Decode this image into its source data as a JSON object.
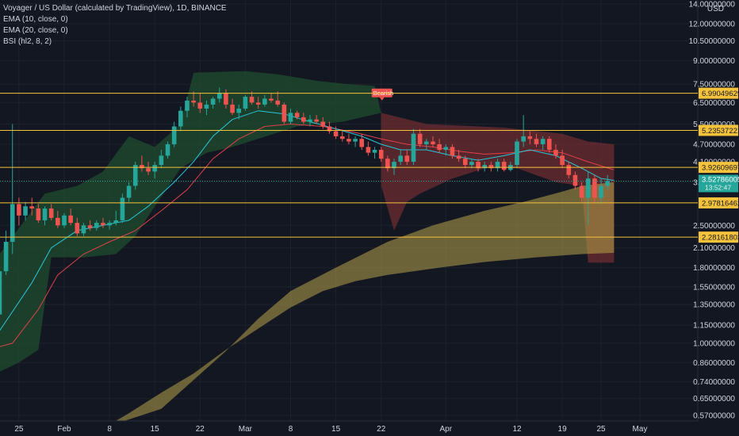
{
  "legend": {
    "title": "Voyager / US Dollar (calculated by TradingView), 1D, BINANCE",
    "ema1": "EMA (10, close, 0)",
    "ema2": "EMA (20, close, 0)",
    "bsi": "BSI (hl2, 8, 2)"
  },
  "colors": {
    "background": "#131722",
    "up": "#26a69a",
    "down": "#ef5350",
    "level_line": "#f5c33b",
    "green_zone": "#1f4a2e",
    "red_zone": "#7a2f33",
    "yellow_band": "#b8a24a",
    "ema10": "#26c6da",
    "ema20": "#e0404a"
  },
  "chart_data": {
    "type": "candlestick",
    "yscale": "log",
    "currency": "USD",
    "y_ticks": [
      "14.00000000",
      "12.00000000",
      "10.50000000",
      "9.00000000",
      "7.50000000",
      "6.50000000",
      "5.50000000",
      "4.70000000",
      "4.10000000",
      "3.50000000",
      "2.50000000",
      "2.10000000",
      "1.80000000",
      "1.55000000",
      "1.35000000",
      "1.15000000",
      "1.00000000",
      "0.86000000",
      "0.74000000",
      "0.65000000",
      "0.57000000"
    ],
    "y_tick_values": [
      14.0,
      12.0,
      10.5,
      9.0,
      7.5,
      6.5,
      5.5,
      4.7,
      4.1,
      3.5,
      2.5,
      2.1,
      1.8,
      1.55,
      1.35,
      1.15,
      1.0,
      0.86,
      0.74,
      0.65,
      0.57
    ],
    "x_ticks": [
      "25",
      "Feb",
      "8",
      "15",
      "22",
      "Mar",
      "8",
      "15",
      "22",
      "Apr",
      "12",
      "19",
      "25",
      "May"
    ],
    "x_tick_days": [
      -7,
      0,
      7,
      14,
      21,
      28,
      35,
      42,
      49,
      59,
      70,
      77,
      83,
      89
    ],
    "horizontal_levels": [
      {
        "value": 6.99049629,
        "label": "6.99049629"
      },
      {
        "value": 5.23537221,
        "label": "5.23537221"
      },
      {
        "value": 3.92609697,
        "label": "3.92609697"
      },
      {
        "value": 2.97816462,
        "label": "2.97816462"
      },
      {
        "value": 2.28161803,
        "label": "2.28161803"
      }
    ],
    "last_price": {
      "value": 3.52786005,
      "label": "3.52786005",
      "countdown": "13:52:47"
    },
    "annotation": {
      "text": "Bearish",
      "day": 49,
      "value": 6.9
    },
    "zones": [
      {
        "type": "bull",
        "points": [
          [
            -31,
            1.05
          ],
          [
            -28,
            1.2
          ],
          [
            -26,
            1.25
          ],
          [
            -25,
            0.78
          ],
          [
            -23,
            0.72
          ],
          [
            -22,
            0.72
          ],
          [
            -19,
            0.8
          ],
          [
            -17,
            0.7
          ],
          [
            -14,
            0.7
          ],
          [
            -10,
            2.0
          ],
          [
            -3,
            3.2
          ],
          [
            2,
            3.4
          ],
          [
            6,
            3.8
          ],
          [
            10,
            5.0
          ],
          [
            14,
            4.6
          ],
          [
            18,
            5.5
          ],
          [
            20,
            8.2
          ],
          [
            28,
            8.3
          ],
          [
            33,
            8.1
          ],
          [
            39,
            7.7
          ],
          [
            44,
            7.5
          ],
          [
            48,
            7.4
          ],
          [
            49,
            6.0
          ],
          [
            43,
            5.6
          ],
          [
            36,
            5.4
          ],
          [
            26,
            4.6
          ],
          [
            22,
            4.4
          ],
          [
            18,
            3.9
          ],
          [
            14,
            2.9
          ],
          [
            11,
            2.3
          ],
          [
            8,
            2.0
          ],
          [
            3,
            1.95
          ],
          [
            -2,
            1.95
          ],
          [
            -4,
            0.95
          ],
          [
            -7,
            0.86
          ],
          [
            -10,
            0.8
          ],
          [
            -14,
            0.72
          ],
          [
            -31,
            0.67
          ]
        ]
      },
      {
        "type": "bear",
        "points": [
          [
            49,
            6.0
          ],
          [
            56,
            5.5
          ],
          [
            68,
            5.35
          ],
          [
            77,
            5.1
          ],
          [
            81,
            4.8
          ],
          [
            85,
            4.7
          ],
          [
            85,
            1.87
          ],
          [
            81,
            1.87
          ],
          [
            80,
            3.4
          ],
          [
            76,
            3.5
          ],
          [
            70,
            3.9
          ],
          [
            65,
            3.9
          ],
          [
            60,
            3.6
          ],
          [
            55,
            3.2
          ],
          [
            53,
            3.0
          ],
          [
            51,
            2.4
          ],
          [
            49,
            3.4
          ]
        ]
      }
    ],
    "band": {
      "upper": [
        [
          4,
          0.5
        ],
        [
          15,
          0.6
        ],
        [
          25,
          0.94
        ],
        [
          30,
          1.21
        ],
        [
          35,
          1.5
        ],
        [
          42,
          1.8
        ],
        [
          50,
          2.2
        ],
        [
          57,
          2.5
        ],
        [
          65,
          2.8
        ],
        [
          71,
          3.0
        ],
        [
          77,
          3.25
        ],
        [
          80,
          3.4
        ],
        [
          85,
          3.5
        ]
      ],
      "lower": [
        [
          85,
          2.02
        ],
        [
          80,
          2.0
        ],
        [
          73,
          1.95
        ],
        [
          65,
          1.88
        ],
        [
          58,
          1.8
        ],
        [
          50,
          1.7
        ],
        [
          45,
          1.62
        ],
        [
          40,
          1.5
        ],
        [
          35,
          1.32
        ],
        [
          30,
          1.12
        ],
        [
          25,
          0.95
        ],
        [
          20,
          0.79
        ],
        [
          15,
          0.68
        ],
        [
          10,
          0.58
        ],
        [
          5,
          0.5
        ]
      ]
    },
    "ema10": [
      [
        -14,
        0.95
      ],
      [
        -10,
        1.1
      ],
      [
        -5,
        1.6
      ],
      [
        -2,
        2.1
      ],
      [
        2,
        2.4
      ],
      [
        6,
        2.5
      ],
      [
        10,
        2.6
      ],
      [
        13,
        2.9
      ],
      [
        17,
        3.5
      ],
      [
        20,
        4.1
      ],
      [
        23,
        5.0
      ],
      [
        26,
        5.7
      ],
      [
        30,
        6.1
      ],
      [
        34,
        5.95
      ],
      [
        38,
        5.6
      ],
      [
        42,
        5.3
      ],
      [
        46,
        5.0
      ],
      [
        49,
        4.7
      ],
      [
        52,
        4.5
      ],
      [
        56,
        4.5
      ],
      [
        60,
        4.3
      ],
      [
        64,
        4.15
      ],
      [
        68,
        4.3
      ],
      [
        72,
        4.5
      ],
      [
        76,
        4.3
      ],
      [
        80,
        3.9
      ],
      [
        83,
        3.6
      ],
      [
        85,
        3.55
      ]
    ],
    "ema20": [
      [
        -14,
        0.92
      ],
      [
        -8,
        1.0
      ],
      [
        -4,
        1.3
      ],
      [
        -1,
        1.7
      ],
      [
        3,
        2.0
      ],
      [
        7,
        2.2
      ],
      [
        11,
        2.4
      ],
      [
        15,
        2.8
      ],
      [
        19,
        3.3
      ],
      [
        23,
        4.2
      ],
      [
        27,
        4.9
      ],
      [
        31,
        5.4
      ],
      [
        35,
        5.5
      ],
      [
        40,
        5.4
      ],
      [
        45,
        5.15
      ],
      [
        49,
        4.9
      ],
      [
        53,
        4.7
      ],
      [
        57,
        4.6
      ],
      [
        61,
        4.45
      ],
      [
        65,
        4.35
      ],
      [
        69,
        4.4
      ],
      [
        73,
        4.5
      ],
      [
        77,
        4.4
      ],
      [
        81,
        4.1
      ],
      [
        85,
        3.85
      ]
    ],
    "candles": [
      [
        -31,
        0.9,
        0.95,
        0.82,
        0.85
      ],
      [
        -30,
        0.85,
        0.9,
        0.8,
        0.88
      ],
      [
        -29,
        0.88,
        0.98,
        0.85,
        0.95
      ],
      [
        -28,
        0.95,
        1.0,
        0.9,
        0.93
      ],
      [
        -27,
        0.93,
        0.97,
        0.88,
        0.91
      ],
      [
        -26,
        0.91,
        0.95,
        0.87,
        0.93
      ],
      [
        -25,
        0.93,
        0.96,
        0.9,
        0.94
      ],
      [
        -24,
        0.94,
        0.99,
        0.92,
        0.97
      ],
      [
        -23,
        0.97,
        1.02,
        0.93,
        0.95
      ],
      [
        -22,
        0.95,
        0.98,
        0.9,
        0.96
      ],
      [
        -21,
        0.96,
        1.0,
        0.92,
        0.94
      ],
      [
        -20,
        0.94,
        0.97,
        0.9,
        0.95
      ],
      [
        -19,
        0.95,
        0.99,
        0.92,
        0.96
      ],
      [
        -18,
        0.96,
        1.05,
        0.93,
        1.02
      ],
      [
        -17,
        1.02,
        1.05,
        0.85,
        0.9
      ],
      [
        -16,
        0.9,
        0.96,
        0.82,
        0.95
      ],
      [
        -15,
        0.95,
        1.02,
        0.92,
        0.98
      ],
      [
        -14,
        0.98,
        1.03,
        0.94,
        0.96
      ],
      [
        -13,
        0.96,
        1.06,
        0.94,
        1.04
      ],
      [
        -12,
        1.04,
        1.08,
        0.99,
        1.02
      ],
      [
        -11,
        1.02,
        1.3,
        1.0,
        1.25
      ],
      [
        -10,
        1.25,
        1.9,
        1.2,
        1.75
      ],
      [
        -9,
        1.75,
        2.4,
        1.7,
        2.2
      ],
      [
        -8,
        2.2,
        5.5,
        2.0,
        2.95
      ],
      [
        -7,
        2.95,
        3.1,
        2.5,
        2.7
      ],
      [
        -6,
        2.7,
        3.0,
        2.6,
        2.9
      ],
      [
        -5,
        2.9,
        3.1,
        2.7,
        2.85
      ],
      [
        -4,
        2.85,
        2.95,
        2.55,
        2.6
      ],
      [
        -3,
        2.6,
        2.9,
        2.5,
        2.85
      ],
      [
        -2,
        2.85,
        2.95,
        2.6,
        2.65
      ],
      [
        -1,
        2.65,
        2.8,
        2.45,
        2.5
      ],
      [
        0,
        2.5,
        2.75,
        2.45,
        2.7
      ],
      [
        1,
        2.7,
        2.85,
        2.5,
        2.55
      ],
      [
        2,
        2.55,
        2.65,
        2.3,
        2.35
      ],
      [
        3,
        2.35,
        2.55,
        2.3,
        2.5
      ],
      [
        4,
        2.5,
        2.6,
        2.4,
        2.45
      ],
      [
        5,
        2.45,
        2.6,
        2.4,
        2.55
      ],
      [
        6,
        2.55,
        2.65,
        2.45,
        2.5
      ],
      [
        7,
        2.5,
        2.6,
        2.42,
        2.55
      ],
      [
        8,
        2.55,
        2.8,
        2.5,
        2.6
      ],
      [
        9,
        2.6,
        3.2,
        2.55,
        3.1
      ],
      [
        10,
        3.1,
        3.5,
        3.0,
        3.4
      ],
      [
        11,
        3.4,
        4.1,
        3.3,
        4.0
      ],
      [
        12,
        4.0,
        4.3,
        3.8,
        3.9
      ],
      [
        13,
        3.9,
        4.1,
        3.7,
        3.8
      ],
      [
        14,
        3.8,
        4.1,
        3.6,
        4.0
      ],
      [
        15,
        4.0,
        4.5,
        3.9,
        4.3
      ],
      [
        16,
        4.3,
        4.8,
        4.2,
        4.7
      ],
      [
        17,
        4.7,
        5.6,
        4.6,
        5.4
      ],
      [
        18,
        5.4,
        6.3,
        5.2,
        6.1
      ],
      [
        19,
        6.1,
        6.8,
        5.8,
        6.6
      ],
      [
        20,
        6.6,
        7.1,
        6.3,
        6.5
      ],
      [
        21,
        6.5,
        7.0,
        6.0,
        6.2
      ],
      [
        22,
        6.2,
        6.6,
        5.9,
        6.4
      ],
      [
        23,
        6.4,
        6.8,
        6.2,
        6.7
      ],
      [
        24,
        6.7,
        7.3,
        6.5,
        7.0
      ],
      [
        25,
        7.0,
        7.2,
        6.2,
        6.4
      ],
      [
        26,
        6.4,
        6.7,
        5.9,
        6.0
      ],
      [
        27,
        6.0,
        6.4,
        5.7,
        6.2
      ],
      [
        28,
        6.2,
        6.9,
        6.1,
        6.8
      ],
      [
        29,
        6.8,
        7.1,
        6.4,
        6.5
      ],
      [
        30,
        6.5,
        6.8,
        6.2,
        6.4
      ],
      [
        31,
        6.4,
        6.9,
        6.3,
        6.7
      ],
      [
        32,
        6.7,
        7.0,
        6.5,
        6.6
      ],
      [
        33,
        6.6,
        7.1,
        6.3,
        6.4
      ],
      [
        34,
        6.4,
        6.5,
        5.5,
        5.6
      ],
      [
        35,
        5.6,
        6.2,
        5.5,
        6.0
      ],
      [
        36,
        6.0,
        6.1,
        5.7,
        5.8
      ],
      [
        37,
        5.8,
        6.0,
        5.5,
        5.6
      ],
      [
        38,
        5.6,
        5.9,
        5.4,
        5.7
      ],
      [
        39,
        5.7,
        5.9,
        5.5,
        5.6
      ],
      [
        40,
        5.6,
        5.8,
        5.3,
        5.4
      ],
      [
        41,
        5.4,
        5.6,
        5.1,
        5.2
      ],
      [
        42,
        5.2,
        5.4,
        4.9,
        5.0
      ],
      [
        43,
        5.0,
        5.2,
        4.8,
        4.9
      ],
      [
        44,
        4.9,
        5.1,
        4.7,
        4.8
      ],
      [
        45,
        4.8,
        5.0,
        4.6,
        4.9
      ],
      [
        46,
        4.9,
        5.1,
        4.5,
        4.6
      ],
      [
        47,
        4.6,
        4.8,
        4.3,
        4.4
      ],
      [
        48,
        4.4,
        4.6,
        4.2,
        4.5
      ],
      [
        49,
        4.5,
        4.6,
        4.1,
        4.2
      ],
      [
        50,
        4.2,
        4.3,
        3.8,
        3.9
      ],
      [
        51,
        3.9,
        4.2,
        3.7,
        4.1
      ],
      [
        52,
        4.1,
        4.5,
        4.0,
        4.3
      ],
      [
        53,
        4.3,
        4.5,
        4.0,
        4.1
      ],
      [
        54,
        4.1,
        5.3,
        4.0,
        5.1
      ],
      [
        55,
        5.1,
        5.3,
        4.6,
        4.7
      ],
      [
        56,
        4.7,
        4.9,
        4.5,
        4.8
      ],
      [
        57,
        4.8,
        5.0,
        4.6,
        4.7
      ],
      [
        58,
        4.7,
        4.9,
        4.4,
        4.5
      ],
      [
        59,
        4.5,
        4.7,
        4.3,
        4.6
      ],
      [
        60,
        4.6,
        4.7,
        4.2,
        4.3
      ],
      [
        61,
        4.3,
        4.5,
        4.1,
        4.2
      ],
      [
        62,
        4.2,
        4.3,
        3.9,
        4.0
      ],
      [
        63,
        4.0,
        4.2,
        3.9,
        4.1
      ],
      [
        64,
        4.1,
        4.2,
        3.8,
        3.9
      ],
      [
        65,
        3.9,
        4.1,
        3.8,
        4.0
      ],
      [
        66,
        4.0,
        4.1,
        3.8,
        3.9
      ],
      [
        67,
        3.9,
        4.2,
        3.8,
        4.1
      ],
      [
        68,
        4.1,
        4.2,
        3.8,
        3.85
      ],
      [
        69,
        3.85,
        4.1,
        3.8,
        4.0
      ],
      [
        70,
        4.0,
        4.9,
        3.9,
        4.8
      ],
      [
        71,
        4.8,
        5.9,
        4.6,
        5.0
      ],
      [
        72,
        5.0,
        5.2,
        4.7,
        4.9
      ],
      [
        73,
        4.9,
        5.1,
        4.6,
        4.7
      ],
      [
        74,
        4.7,
        5.0,
        4.5,
        4.9
      ],
      [
        75,
        4.9,
        5.0,
        4.4,
        4.5
      ],
      [
        76,
        4.5,
        4.7,
        4.2,
        4.3
      ],
      [
        77,
        4.3,
        4.5,
        3.9,
        4.0
      ],
      [
        78,
        4.0,
        4.1,
        3.6,
        3.7
      ],
      [
        79,
        3.7,
        3.8,
        3.3,
        3.4
      ],
      [
        80,
        3.4,
        3.5,
        3.0,
        3.1
      ],
      [
        81,
        3.1,
        3.8,
        2.5,
        3.6
      ],
      [
        82,
        3.6,
        3.7,
        3.0,
        3.1
      ],
      [
        83,
        3.1,
        3.6,
        2.95,
        3.4
      ],
      [
        84,
        3.4,
        3.7,
        3.3,
        3.53
      ]
    ]
  }
}
